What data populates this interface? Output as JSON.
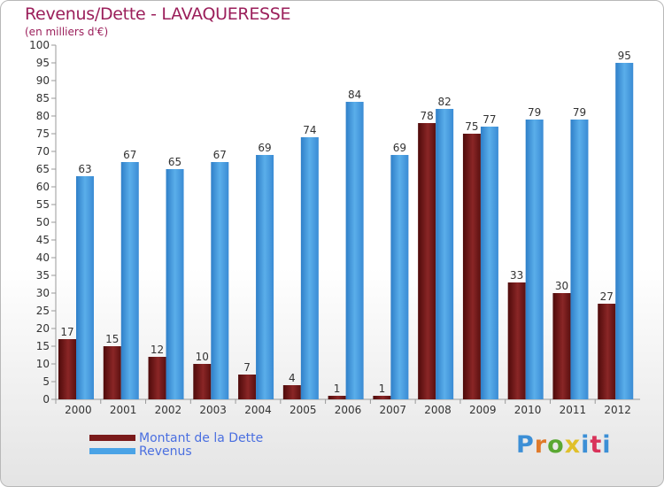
{
  "title": "Revenus/Dette - LAVAQUERESSE",
  "subtitle": "(en milliers d'€)",
  "brand": {
    "text": "Proxiti",
    "colors": [
      "#3c8fd6",
      "#e07a2a",
      "#5aa832",
      "#e0c02a",
      "#3c8fd6",
      "#d9335a",
      "#3c8fd6"
    ]
  },
  "legend": [
    {
      "label": "Montant de la Dette",
      "color": "#7a1a1a"
    },
    {
      "label": "Revenus",
      "color": "#4aa3e6"
    }
  ],
  "chart_data": {
    "type": "bar",
    "categories": [
      "2000",
      "2001",
      "2002",
      "2003",
      "2004",
      "2005",
      "2006",
      "2007",
      "2008",
      "2009",
      "2010",
      "2011",
      "2012"
    ],
    "series": [
      {
        "name": "Montant de la Dette",
        "color": "#7a1a1a",
        "values": [
          17,
          15,
          12,
          10,
          7,
          4,
          1,
          1,
          78,
          75,
          33,
          30,
          27
        ]
      },
      {
        "name": "Revenus",
        "color": "#4aa3e6",
        "values": [
          63,
          67,
          65,
          67,
          69,
          74,
          84,
          69,
          82,
          77,
          79,
          79,
          95
        ]
      }
    ],
    "ylim": [
      0,
      100
    ],
    "ytick_step": 5,
    "grid": false,
    "legend_position": "bottom-left"
  }
}
